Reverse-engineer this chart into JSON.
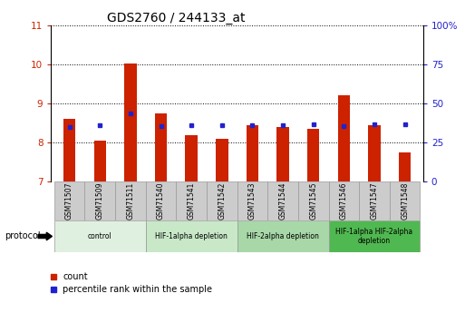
{
  "title": "GDS2760 / 244133_at",
  "samples": [
    "GSM71507",
    "GSM71509",
    "GSM71511",
    "GSM71540",
    "GSM71541",
    "GSM71542",
    "GSM71543",
    "GSM71544",
    "GSM71545",
    "GSM71546",
    "GSM71547",
    "GSM71548"
  ],
  "red_values": [
    8.6,
    8.05,
    10.02,
    8.75,
    8.18,
    8.1,
    8.45,
    8.4,
    8.35,
    9.2,
    8.45,
    7.75
  ],
  "blue_values": [
    8.4,
    8.45,
    8.75,
    8.42,
    8.44,
    8.44,
    8.45,
    8.44,
    8.46,
    8.42,
    8.46,
    8.46
  ],
  "ylim_left": [
    7,
    11
  ],
  "ylim_right": [
    0,
    100
  ],
  "yticks_left": [
    7,
    8,
    9,
    10,
    11
  ],
  "yticks_right": [
    0,
    25,
    50,
    75,
    100
  ],
  "ytick_labels_right": [
    "0",
    "25",
    "50",
    "75",
    "100%"
  ],
  "bar_width": 0.4,
  "red_color": "#cc2200",
  "blue_color": "#2222cc",
  "grid_color": "#000000",
  "protocol_groups": [
    {
      "label": "control",
      "start": 0,
      "end": 2,
      "color": "#e0f0e0"
    },
    {
      "label": "HIF-1alpha depletion",
      "start": 3,
      "end": 5,
      "color": "#c8e8c8"
    },
    {
      "label": "HIF-2alpha depletion",
      "start": 6,
      "end": 8,
      "color": "#a8d8a8"
    },
    {
      "label": "HIF-1alpha HIF-2alpha\ndepletion",
      "start": 9,
      "end": 11,
      "color": "#50b850"
    }
  ],
  "left_tick_color": "#cc2200",
  "right_tick_color": "#2222cc",
  "legend_count_label": "count",
  "legend_pct_label": "percentile rank within the sample",
  "protocol_label": "protocol",
  "base_value": 7
}
